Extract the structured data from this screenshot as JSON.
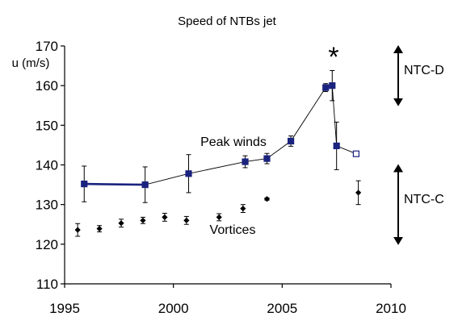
{
  "chart_data": {
    "type": "scatter",
    "title": "Speed of NTBs jet",
    "ylabel": "u (m/s)",
    "xlabel": "",
    "xlim": [
      1995,
      2010
    ],
    "ylim": [
      110,
      170
    ],
    "xticks": [
      1995,
      2000,
      2005,
      2010
    ],
    "yticks": [
      110,
      120,
      130,
      140,
      150,
      160,
      170
    ],
    "grid": false,
    "series": [
      {
        "name": "Peak winds",
        "color": "#1a237e",
        "marker": "square",
        "points": [
          {
            "x": 1995.9,
            "y": 135.2,
            "err": 4.5
          },
          {
            "x": 1998.7,
            "y": 135.0,
            "err": 4.5
          },
          {
            "x": 2000.7,
            "y": 137.8,
            "err": 4.8
          },
          {
            "x": 2003.3,
            "y": 140.8,
            "err": 1.5
          },
          {
            "x": 2004.3,
            "y": 141.6,
            "err": 1.3
          },
          {
            "x": 2005.4,
            "y": 146.0,
            "err": 1.3
          },
          {
            "x": 2007.0,
            "y": 159.5,
            "err": 1.0
          },
          {
            "x": 2007.3,
            "y": 160.0,
            "err": 3.8
          },
          {
            "x": 2007.5,
            "y": 144.8,
            "err": 6.0
          },
          {
            "x": 2008.4,
            "y": 142.8,
            "err": 0,
            "open": true
          }
        ]
      },
      {
        "name": "Vortices",
        "color": "#000000",
        "marker": "diamond",
        "points": [
          {
            "x": 1995.6,
            "y": 123.6,
            "err": 1.6
          },
          {
            "x": 1996.6,
            "y": 123.9,
            "err": 0.8
          },
          {
            "x": 1997.6,
            "y": 125.3,
            "err": 1.0
          },
          {
            "x": 1998.6,
            "y": 126.0,
            "err": 0.8
          },
          {
            "x": 1999.6,
            "y": 126.8,
            "err": 1.0
          },
          {
            "x": 2000.6,
            "y": 126.0,
            "err": 1.0
          },
          {
            "x": 2002.1,
            "y": 126.8,
            "err": 0.9
          },
          {
            "x": 2003.2,
            "y": 129.0,
            "err": 1.0
          },
          {
            "x": 2004.3,
            "y": 131.4,
            "err": 0.3
          },
          {
            "x": 2008.5,
            "y": 133.0,
            "err": 3.0
          }
        ]
      }
    ],
    "annotations": {
      "star": "*",
      "ntc_d": {
        "label": "NTC-D",
        "range": [
          155,
          170
        ]
      },
      "ntc_c": {
        "label": "NTC-C",
        "range": [
          120,
          140
        ]
      }
    }
  }
}
